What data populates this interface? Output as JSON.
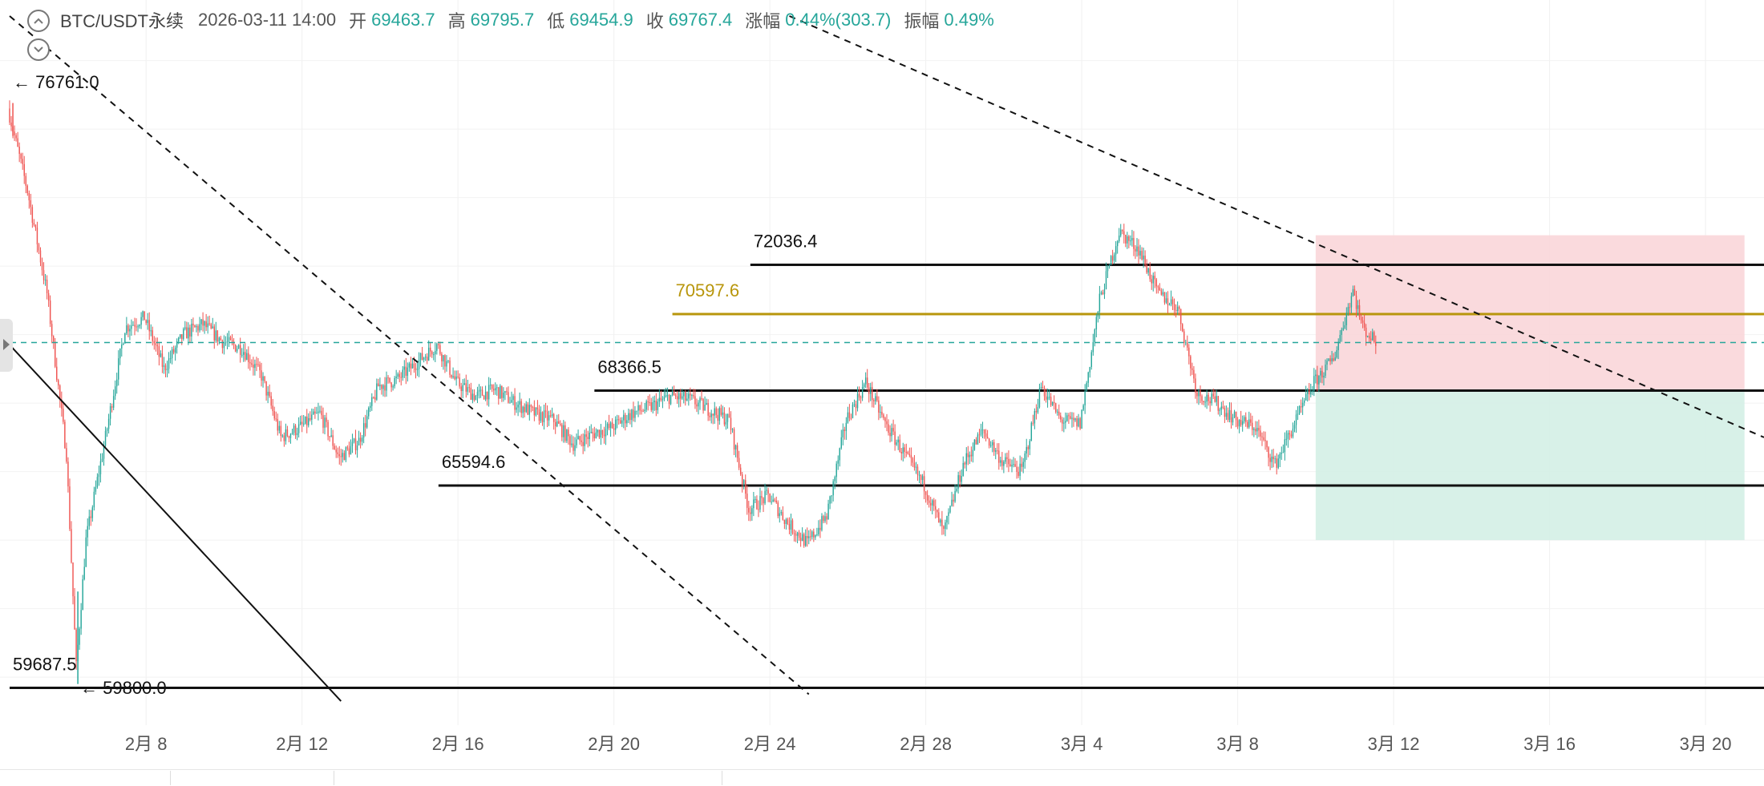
{
  "header": {
    "symbol": "BTC/USDT永续",
    "datetime": "2026-03-11 14:00",
    "open_label": "开",
    "open": "69463.7",
    "high_label": "高",
    "high": "69795.7",
    "low_label": "低",
    "low": "69454.9",
    "close_label": "收",
    "close": "69767.4",
    "change_label": "涨幅",
    "change": "0.44%(303.7)",
    "amplitude_label": "振幅",
    "amplitude": "0.49%"
  },
  "icons": {
    "collapse_up": "chevron-up-icon",
    "collapse_down": "chevron-down-icon",
    "side": "arrow-right-icon"
  },
  "colors": {
    "up": "#26a69a",
    "down": "#ef5350",
    "gold_line": "#b8960c",
    "stop_zone": "#f9d6d9",
    "target_zone": "#d4efe6",
    "current_price": "#26a69a"
  },
  "chart_data": {
    "type": "candlestick",
    "y_range": [
      58600,
      79300
    ],
    "x_range": [
      "2026-02-04 12:00",
      "2026-03-21 12:00"
    ],
    "x_ticks": [
      "2月 8",
      "2月 12",
      "2月 16",
      "2月 20",
      "2月 24",
      "2月 28",
      "3月 4",
      "3月 8",
      "3月 12",
      "3月 16",
      "3月 20"
    ],
    "x_tick_dates": [
      "2026-02-08",
      "2026-02-12",
      "2026-02-16",
      "2026-02-20",
      "2026-02-24",
      "2026-02-28",
      "2026-03-04",
      "2026-03-08",
      "2026-03-12",
      "2026-03-16",
      "2026-03-20"
    ],
    "current_price": 69767.4,
    "extremes": {
      "high_label": "76761.0",
      "low_label": "59800.0"
    },
    "price_path": [
      [
        "2026-02-04 12:00",
        76600
      ],
      [
        "2026-02-05 00:00",
        74200
      ],
      [
        "2026-02-05 12:00",
        71200
      ],
      [
        "2026-02-06 00:00",
        66500
      ],
      [
        "2026-02-06 06:00",
        60300
      ],
      [
        "2026-02-06 12:00",
        64000
      ],
      [
        "2026-02-07 00:00",
        67000
      ],
      [
        "2026-02-07 12:00",
        70200
      ],
      [
        "2026-02-08 00:00",
        70500
      ],
      [
        "2026-02-08 12:00",
        69000
      ],
      [
        "2026-02-09 00:00",
        70000
      ],
      [
        "2026-02-09 12:00",
        70300
      ],
      [
        "2026-02-10 00:00",
        69800
      ],
      [
        "2026-02-10 12:00",
        69600
      ],
      [
        "2026-02-11 00:00",
        68800
      ],
      [
        "2026-02-11 12:00",
        67000
      ],
      [
        "2026-02-12 00:00",
        67300
      ],
      [
        "2026-02-12 12:00",
        67700
      ],
      [
        "2026-02-13 00:00",
        66400
      ],
      [
        "2026-02-13 12:00",
        66900
      ],
      [
        "2026-02-14 00:00",
        68500
      ],
      [
        "2026-02-14 12:00",
        68700
      ],
      [
        "2026-02-15 00:00",
        69200
      ],
      [
        "2026-02-15 12:00",
        69700
      ],
      [
        "2026-02-16 00:00",
        68600
      ],
      [
        "2026-02-16 12:00",
        68200
      ],
      [
        "2026-02-17 00:00",
        68400
      ],
      [
        "2026-02-17 12:00",
        68000
      ],
      [
        "2026-02-18 00:00",
        67700
      ],
      [
        "2026-02-18 12:00",
        67500
      ],
      [
        "2026-02-19 00:00",
        66800
      ],
      [
        "2026-02-19 12:00",
        67100
      ],
      [
        "2026-02-20 00:00",
        67300
      ],
      [
        "2026-02-20 12:00",
        67700
      ],
      [
        "2026-02-21 00:00",
        67900
      ],
      [
        "2026-02-21 12:00",
        68200
      ],
      [
        "2026-02-22 00:00",
        68100
      ],
      [
        "2026-02-22 12:00",
        67800
      ],
      [
        "2026-02-23 00:00",
        67500
      ],
      [
        "2026-02-23 12:00",
        64900
      ],
      [
        "2026-02-24 00:00",
        65300
      ],
      [
        "2026-02-24 12:00",
        64500
      ],
      [
        "2026-02-25 00:00",
        63900
      ],
      [
        "2026-02-25 12:00",
        64700
      ],
      [
        "2026-02-26 00:00",
        67500
      ],
      [
        "2026-02-26 12:00",
        68600
      ],
      [
        "2026-02-27 00:00",
        67400
      ],
      [
        "2026-02-27 12:00",
        66500
      ],
      [
        "2026-02-28 00:00",
        65600
      ],
      [
        "2026-02-28 12:00",
        64200
      ],
      [
        "2026-03-01 00:00",
        66200
      ],
      [
        "2026-03-01 12:00",
        67200
      ],
      [
        "2026-03-02 00:00",
        66300
      ],
      [
        "2026-03-02 12:00",
        66000
      ],
      [
        "2026-03-03 00:00",
        68500
      ],
      [
        "2026-03-03 12:00",
        67500
      ],
      [
        "2026-03-04 00:00",
        67400
      ],
      [
        "2026-03-04 12:00",
        71000
      ],
      [
        "2026-03-05 00:00",
        73000
      ],
      [
        "2026-03-05 12:00",
        72500
      ],
      [
        "2026-03-06 00:00",
        71200
      ],
      [
        "2026-03-06 12:00",
        70800
      ],
      [
        "2026-03-07 00:00",
        68300
      ],
      [
        "2026-03-07 12:00",
        68000
      ],
      [
        "2026-03-08 00:00",
        67500
      ],
      [
        "2026-03-08 12:00",
        67300
      ],
      [
        "2026-03-09 00:00",
        66200
      ],
      [
        "2026-03-09 12:00",
        67400
      ],
      [
        "2026-03-10 00:00",
        68600
      ],
      [
        "2026-03-10 12:00",
        69300
      ],
      [
        "2026-03-11 00:00",
        71300
      ],
      [
        "2026-03-11 06:00",
        70200
      ],
      [
        "2026-03-11 14:00",
        69767.4
      ]
    ],
    "horizontal_lines": [
      {
        "label": "72036.4",
        "price": 72036.4,
        "start": "2026-02-23 12:00",
        "color": "#111111"
      },
      {
        "label": "70597.6",
        "price": 70597.6,
        "start": "2026-02-21 12:00",
        "color": "#b8960c"
      },
      {
        "label": "68366.5",
        "price": 68366.5,
        "start": "2026-02-19 12:00",
        "color": "#111111"
      },
      {
        "label": "65594.6",
        "price": 65594.6,
        "start": "2026-02-15 12:00",
        "color": "#111111"
      },
      {
        "label": "59687.5",
        "price": 59687.5,
        "start": "2026-02-04 12:00",
        "color": "#111111"
      }
    ],
    "trend_lines": [
      {
        "style": "dashed",
        "from": [
          "2026-02-04 12:00",
          79300
        ],
        "to": [
          "2026-02-25 00:00",
          59500
        ]
      },
      {
        "style": "dashed",
        "from": [
          "2026-02-24 12:00",
          79300
        ],
        "to": [
          "2026-03-21 12:00",
          67000
        ]
      },
      {
        "style": "solid",
        "from": [
          "2026-02-04 12:00",
          69700
        ],
        "to": [
          "2026-02-13 00:00",
          59300
        ]
      }
    ],
    "position_box": {
      "start": "2026-03-10 00:00",
      "end": "2026-03-21 00:00",
      "stop": 72900,
      "entry": 68366.5,
      "target": 64000,
      "filled_until": "2026-03-11 16:00"
    }
  }
}
